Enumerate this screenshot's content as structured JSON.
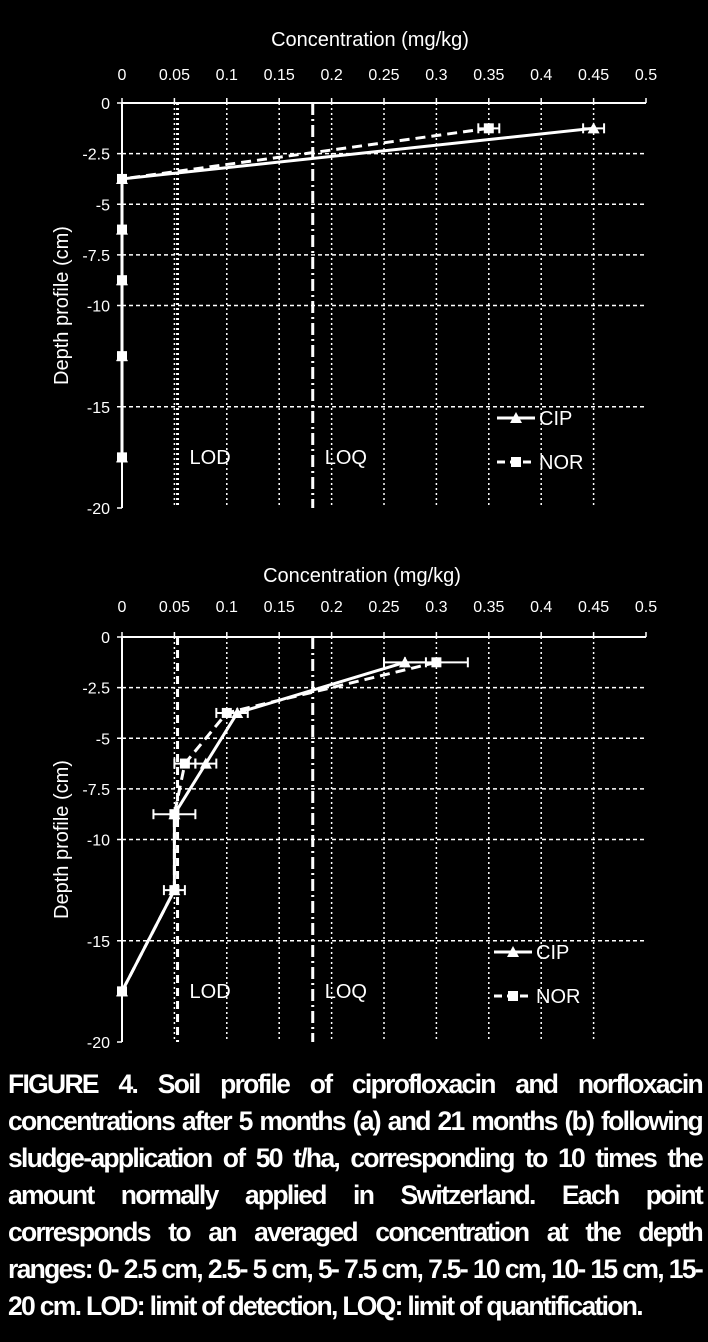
{
  "chart_data": [
    {
      "type": "line",
      "panel": "a",
      "xlabel": "Concentration (mg/kg)",
      "ylabel": "Depth profile (cm)",
      "xlim": [
        0,
        0.5
      ],
      "ylim": [
        -20,
        0
      ],
      "x_ticks": [
        "0",
        "0.05",
        "0.1",
        "0.15",
        "0.2",
        "0.25",
        "0.3",
        "0.35",
        "0.4",
        "0.45",
        "0.5"
      ],
      "y_ticks": [
        "0",
        "-2.5",
        "-5",
        "-7.5",
        "-10",
        "-15",
        "-20"
      ],
      "grid": true,
      "x_axis_position": "top",
      "legend_position": "bottom-right",
      "series": [
        {
          "name": "CIP",
          "marker": "triangle",
          "dash": "solid",
          "points": [
            [
              0.45,
              -1.25
            ],
            [
              0.0,
              -3.75
            ],
            [
              0.0,
              -6.25
            ],
            [
              0.0,
              -8.75
            ],
            [
              0.0,
              -12.5
            ],
            [
              0.0,
              -17.5
            ]
          ],
          "x_err": [
            0.01,
            0,
            0,
            0,
            0,
            0
          ]
        },
        {
          "name": "NOR",
          "marker": "square",
          "dash": "dashed",
          "points": [
            [
              0.35,
              -1.25
            ],
            [
              0.0,
              -3.75
            ],
            [
              0.0,
              -6.25
            ],
            [
              0.0,
              -8.75
            ],
            [
              0.0,
              -12.5
            ],
            [
              0.0,
              -17.5
            ]
          ],
          "x_err": [
            0.01,
            0,
            0,
            0,
            0,
            0
          ]
        }
      ],
      "reference_lines": [
        {
          "label": "LOD",
          "x": 0.053,
          "style": "dotted"
        },
        {
          "label": "LOQ",
          "x": 0.182,
          "style": "dashdot"
        }
      ]
    },
    {
      "type": "line",
      "panel": "b",
      "xlabel": "Concentration (mg/kg)",
      "ylabel": "Depth profile (cm)",
      "xlim": [
        0,
        0.5
      ],
      "ylim": [
        -20,
        0
      ],
      "x_ticks": [
        "0",
        "0.05",
        "0.1",
        "0.15",
        "0.2",
        "0.25",
        "0.3",
        "0.35",
        "0.4",
        "0.45",
        "0.5"
      ],
      "y_ticks": [
        "0",
        "-2.5",
        "-5",
        "-7.5",
        "-10",
        "-15",
        "-20"
      ],
      "grid": true,
      "x_axis_position": "top",
      "legend_position": "bottom-right",
      "series": [
        {
          "name": "CIP",
          "marker": "triangle",
          "dash": "solid",
          "points": [
            [
              0.27,
              -1.25
            ],
            [
              0.11,
              -3.75
            ],
            [
              0.08,
              -6.25
            ],
            [
              0.05,
              -8.75
            ],
            [
              0.05,
              -12.5
            ],
            [
              0.0,
              -17.5
            ]
          ],
          "x_err": [
            0.02,
            0.01,
            0.01,
            0.0,
            0.0,
            0.0
          ]
        },
        {
          "name": "NOR",
          "marker": "square",
          "dash": "dashed",
          "points": [
            [
              0.3,
              -1.25
            ],
            [
              0.1,
              -3.75
            ],
            [
              0.06,
              -6.25
            ],
            [
              0.05,
              -8.75
            ],
            [
              0.05,
              -12.5
            ],
            [
              0.0,
              -17.5
            ]
          ],
          "x_err": [
            0.03,
            0.01,
            0.01,
            0.02,
            0.01,
            0.0
          ]
        }
      ],
      "reference_lines": [
        {
          "label": "LOD",
          "x": 0.053,
          "style": "dashed"
        },
        {
          "label": "LOQ",
          "x": 0.182,
          "style": "dashdot"
        }
      ]
    }
  ],
  "caption": "FIGURE 4.  Soil profile of ciprofloxacin and norfloxacin concentrations after 5 months (a) and 21 months (b) following sludge-application of 50 t/ha, corresponding to 10 times the amount normally applied in Switzerland. Each point corresponds to an averaged concentration at the depth ranges: 0- 2.5 cm, 2.5- 5 cm, 5- 7.5 cm, 7.5- 10 cm, 10- 15 cm, 15- 20 cm. LOD: limit of detection, LOQ: limit of quantification."
}
